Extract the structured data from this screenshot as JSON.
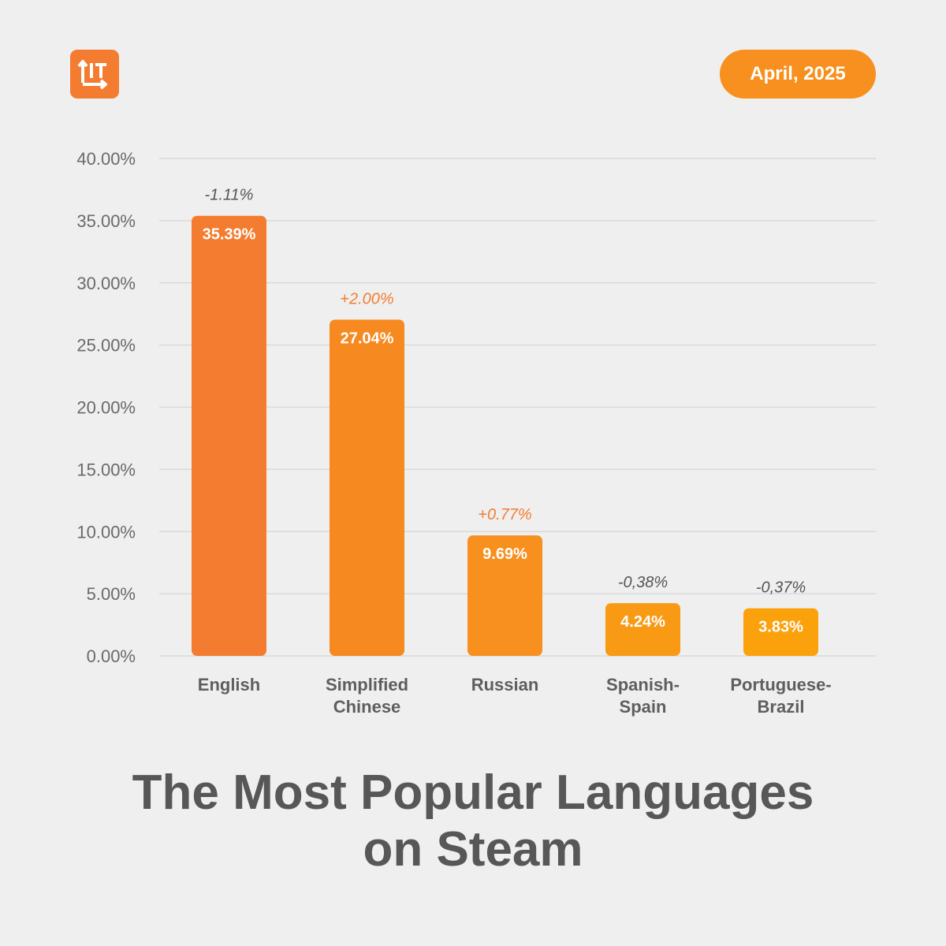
{
  "header": {
    "logo_icon": "lit-logo-icon",
    "date_badge": "April, 2025"
  },
  "title": {
    "line1": "The Most Popular Languages",
    "line2": "on Steam"
  },
  "colors": {
    "background": "#efefef",
    "accent": "#f47c30",
    "badge": "#f7901e",
    "positive_change": "#f47c30",
    "negative_change": "#555555",
    "bar_gradient": [
      "#f47c30",
      "#f6891f",
      "#f7901e",
      "#f89a14",
      "#fba10b"
    ]
  },
  "chart_data": {
    "type": "bar",
    "title": "The Most Popular Languages on Steam",
    "xlabel": "",
    "ylabel": "",
    "ylim": [
      0,
      40
    ],
    "y_ticks": [
      "0.00%",
      "5.00%",
      "10.00%",
      "15.00%",
      "20.00%",
      "25.00%",
      "30.00%",
      "35.00%",
      "40.00%"
    ],
    "grid": true,
    "categories": [
      [
        "English"
      ],
      [
        "Simplified",
        "Chinese"
      ],
      [
        "Russian"
      ],
      [
        "Spanish-",
        "Spain"
      ],
      [
        "Portuguese-",
        "Brazil"
      ]
    ],
    "values": [
      35.39,
      27.04,
      9.69,
      4.24,
      3.83
    ],
    "value_labels": [
      "35.39%",
      "27.04%",
      "9.69%",
      "4.24%",
      "3.83%"
    ],
    "changes": [
      "-1.11%",
      "+2.00%",
      "+0.77%",
      "-0,38%",
      "-0,37%"
    ]
  }
}
